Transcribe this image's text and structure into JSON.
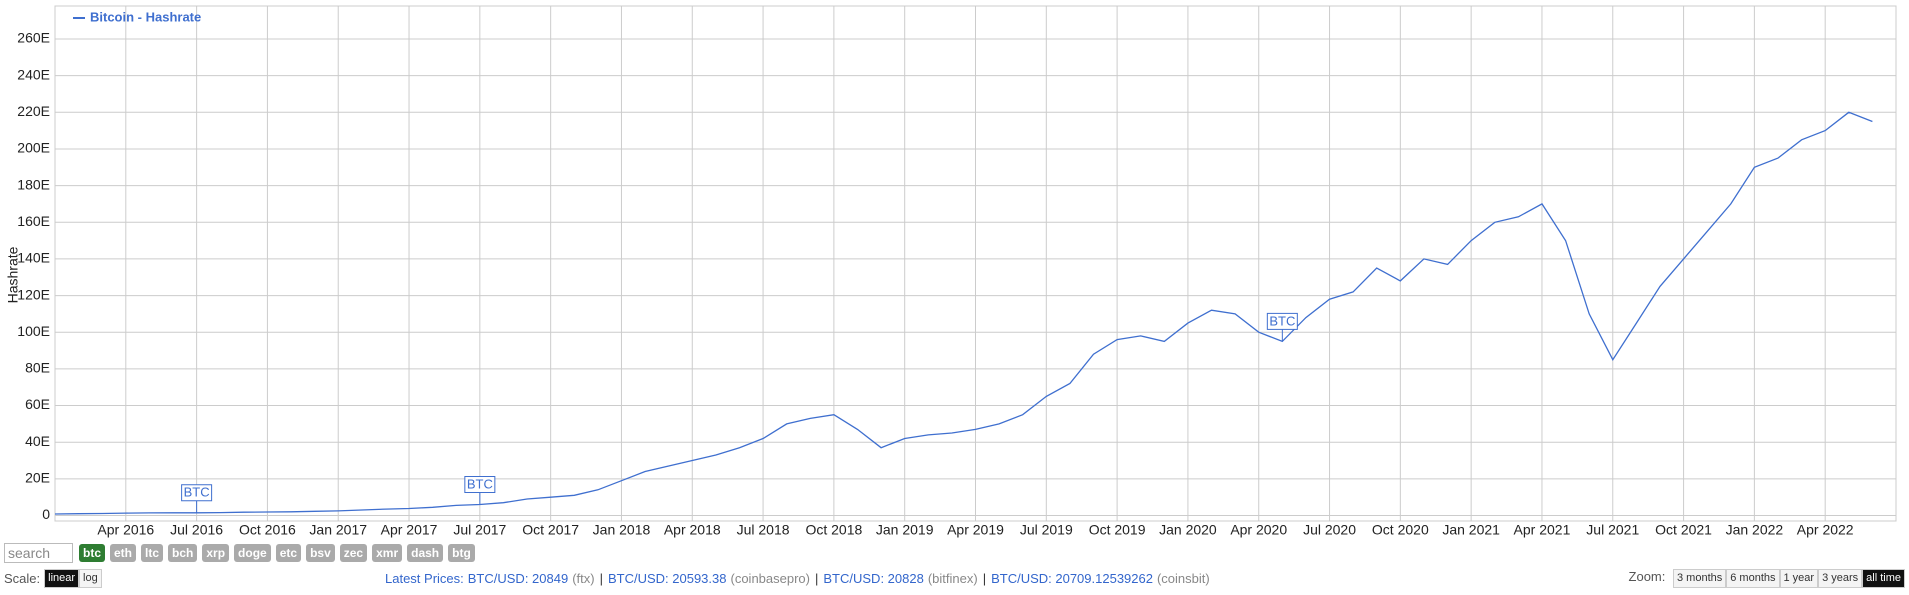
{
  "chart_data": {
    "type": "line",
    "y_label": "Hashrate",
    "x": [
      "2016-01",
      "2016-02",
      "2016-03",
      "2016-04",
      "2016-05",
      "2016-06",
      "2016-07",
      "2016-08",
      "2016-09",
      "2016-10",
      "2016-11",
      "2016-12",
      "2017-01",
      "2017-02",
      "2017-03",
      "2017-04",
      "2017-05",
      "2017-06",
      "2017-07",
      "2017-08",
      "2017-09",
      "2017-10",
      "2017-11",
      "2017-12",
      "2018-01",
      "2018-02",
      "2018-03",
      "2018-04",
      "2018-05",
      "2018-06",
      "2018-07",
      "2018-08",
      "2018-09",
      "2018-10",
      "2018-11",
      "2018-12",
      "2019-01",
      "2019-02",
      "2019-03",
      "2019-04",
      "2019-05",
      "2019-06",
      "2019-07",
      "2019-08",
      "2019-09",
      "2019-10",
      "2019-11",
      "2019-12",
      "2020-01",
      "2020-02",
      "2020-03",
      "2020-04",
      "2020-05",
      "2020-06",
      "2020-07",
      "2020-08",
      "2020-09",
      "2020-10",
      "2020-11",
      "2020-12",
      "2021-01",
      "2021-02",
      "2021-03",
      "2021-04",
      "2021-05",
      "2021-06",
      "2021-07",
      "2021-08",
      "2021-09",
      "2021-10",
      "2021-11",
      "2021-12",
      "2022-01",
      "2022-02",
      "2022-03",
      "2022-04",
      "2022-05",
      "2022-06"
    ],
    "series": [
      {
        "name": "Bitcoin - Hashrate",
        "color": "#3f6fcf",
        "values": [
          0.8,
          1,
          1.1,
          1.3,
          1.4,
          1.5,
          1.5,
          1.6,
          1.8,
          1.9,
          2,
          2.3,
          2.5,
          3,
          3.5,
          3.8,
          4.5,
          5.5,
          6,
          7,
          9,
          10,
          11,
          14,
          19,
          24,
          27,
          30,
          33,
          37,
          42,
          50,
          53,
          55,
          47,
          37,
          42,
          44,
          45,
          47,
          50,
          55,
          65,
          72,
          88,
          96,
          98,
          95,
          105,
          112,
          110,
          100,
          95,
          108,
          118,
          122,
          135,
          128,
          140,
          137,
          150,
          160,
          163,
          170,
          150,
          110,
          85,
          105,
          125,
          140,
          155,
          170,
          190,
          195,
          205,
          210,
          220,
          215
        ]
      }
    ],
    "xlim": [
      "2016-01",
      "2022-07"
    ],
    "xticks": [
      {
        "value": "2016-04",
        "label": "Apr 2016"
      },
      {
        "value": "2016-07",
        "label": "Jul 2016"
      },
      {
        "value": "2016-10",
        "label": "Oct 2016"
      },
      {
        "value": "2017-01",
        "label": "Jan 2017"
      },
      {
        "value": "2017-04",
        "label": "Apr 2017"
      },
      {
        "value": "2017-07",
        "label": "Jul 2017"
      },
      {
        "value": "2017-10",
        "label": "Oct 2017"
      },
      {
        "value": "2018-01",
        "label": "Jan 2018"
      },
      {
        "value": "2018-04",
        "label": "Apr 2018"
      },
      {
        "value": "2018-07",
        "label": "Jul 2018"
      },
      {
        "value": "2018-10",
        "label": "Oct 2018"
      },
      {
        "value": "2019-01",
        "label": "Jan 2019"
      },
      {
        "value": "2019-04",
        "label": "Apr 2019"
      },
      {
        "value": "2019-07",
        "label": "Jul 2019"
      },
      {
        "value": "2019-10",
        "label": "Oct 2019"
      },
      {
        "value": "2020-01",
        "label": "Jan 2020"
      },
      {
        "value": "2020-04",
        "label": "Apr 2020"
      },
      {
        "value": "2020-07",
        "label": "Jul 2020"
      },
      {
        "value": "2020-10",
        "label": "Oct 2020"
      },
      {
        "value": "2021-01",
        "label": "Jan 2021"
      },
      {
        "value": "2021-04",
        "label": "Apr 2021"
      },
      {
        "value": "2021-07",
        "label": "Jul 2021"
      },
      {
        "value": "2021-10",
        "label": "Oct 2021"
      },
      {
        "value": "2022-01",
        "label": "Jan 2022"
      },
      {
        "value": "2022-04",
        "label": "Apr 2022"
      }
    ],
    "ylim": [
      -3,
      278
    ],
    "yticks": [
      0,
      {
        "value": 20,
        "label": "20E"
      },
      {
        "value": 40,
        "label": "40E"
      },
      {
        "value": 60,
        "label": "60E"
      },
      {
        "value": 80,
        "label": "80E"
      },
      {
        "value": 100,
        "label": "100E"
      },
      {
        "value": 120,
        "label": "120E"
      },
      {
        "value": 140,
        "label": "140E"
      },
      {
        "value": 160,
        "label": "160E"
      },
      {
        "value": 180,
        "label": "180E"
      },
      {
        "value": 200,
        "label": "200E"
      },
      {
        "value": 220,
        "label": "220E"
      },
      {
        "value": 240,
        "label": "240E"
      },
      {
        "value": 260,
        "label": "260E"
      }
    ],
    "grid": true,
    "legend": "top-left",
    "annotations": [
      {
        "x": "2016-07",
        "label": "BTC"
      },
      {
        "x": "2017-07",
        "label": "BTC"
      },
      {
        "x": "2020-05",
        "label": "BTC"
      }
    ]
  },
  "controls": {
    "search_placeholder": "search",
    "coins": [
      "btc",
      "eth",
      "ltc",
      "bch",
      "xrp",
      "doge",
      "etc",
      "bsv",
      "zec",
      "xmr",
      "dash",
      "btg"
    ],
    "active_coin": 0,
    "scale_label": "Scale:",
    "scale_options": [
      "linear",
      "log"
    ],
    "active_scale": 0,
    "prices_label": "Latest Prices:",
    "prices": [
      {
        "text": "BTC/USD: 20849",
        "source": "(ftx)"
      },
      {
        "text": "BTC/USD: 20593.38",
        "source": "(coinbasepro)"
      },
      {
        "text": "BTC/USD: 20828",
        "source": "(bitfinex)"
      },
      {
        "text": "BTC/USD: 20709.12539262",
        "source": "(coinsbit)"
      }
    ],
    "zoom_label": "Zoom:",
    "zoom_options": [
      "3 months",
      "6 months",
      "1 year",
      "3 years",
      "all time"
    ],
    "active_zoom": 4
  }
}
